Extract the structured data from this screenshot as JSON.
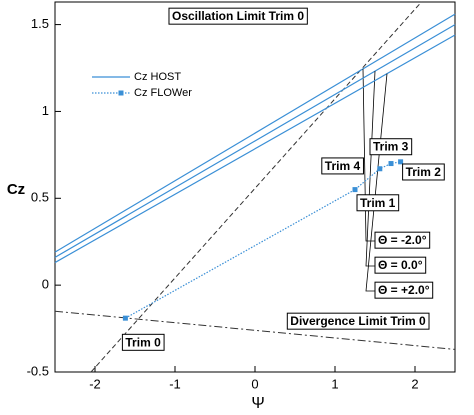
{
  "chart_data": {
    "type": "line",
    "x_label": "Ψ",
    "y_label": "Cz",
    "xlim": [
      -2.5,
      2.5
    ],
    "ylim": [
      -0.5,
      1.63
    ],
    "xticks": [
      -2,
      -1,
      0,
      1,
      2
    ],
    "yticks": [
      -0.5,
      0,
      0.5,
      1,
      1.5
    ],
    "series": [
      {
        "name": "Cz HOST",
        "color": "#3a8fd6",
        "style": "solid",
        "lines": [
          {
            "label": "Θ = -2.0°",
            "x": [
              -2.5,
              2.5
            ],
            "values": [
              0.19,
              1.56
            ]
          },
          {
            "label": "Θ = 0.0°",
            "x": [
              -2.5,
              2.5
            ],
            "values": [
              0.16,
              1.5
            ]
          },
          {
            "label": "Θ = +2.0°",
            "x": [
              -2.5,
              2.5
            ],
            "values": [
              0.13,
              1.44
            ]
          }
        ]
      },
      {
        "name": "Cz FLOWer",
        "color": "#3a8fd6",
        "style": "dotted",
        "x": [
          -1.62,
          1.25,
          1.56,
          1.7,
          1.82
        ],
        "values": [
          -0.19,
          0.55,
          0.67,
          0.7,
          0.71
        ],
        "point_labels": [
          "Trim 0",
          "Trim 1",
          "Trim 4",
          "Trim 3",
          "Trim 2"
        ]
      }
    ],
    "reference_lines": [
      {
        "label": "Oscillation Limit Trim 0",
        "x": [
          -2.05,
          2.08
        ],
        "values": [
          -0.5,
          1.63
        ],
        "style": "dashed"
      },
      {
        "label": "Divergence Limit Trim 0",
        "x": [
          -2.5,
          2.5
        ],
        "values": [
          -0.15,
          -0.37
        ],
        "style": "dashdot"
      }
    ]
  }
}
